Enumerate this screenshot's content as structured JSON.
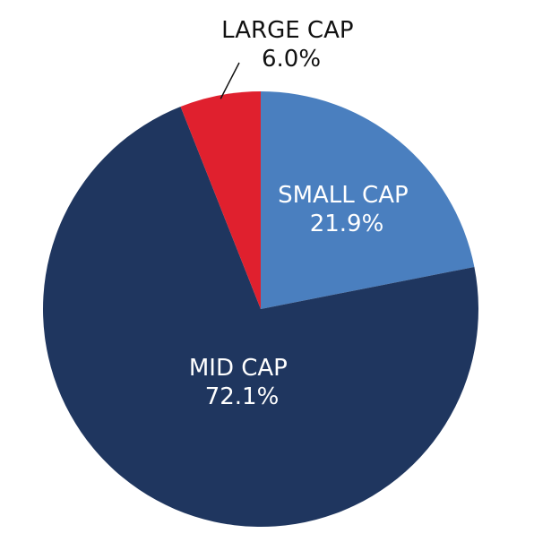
{
  "chart_data": {
    "type": "pie",
    "title": "",
    "start_angle_deg": 0,
    "direction": "clockwise",
    "slices": [
      {
        "label": "SMALL CAP",
        "value": 21.9,
        "value_label": "21.9%",
        "color": "#4a7fbf",
        "label_color": "#ffffff"
      },
      {
        "label": "MID CAP",
        "value": 72.1,
        "value_label": "72.1%",
        "color": "#1f365f",
        "label_color": "#ffffff"
      },
      {
        "label": "LARGE CAP",
        "value": 6.0,
        "value_label": "6.0%",
        "color": "#e0202e",
        "label_color": "#111111"
      }
    ],
    "leader_line_color": "#111111"
  }
}
